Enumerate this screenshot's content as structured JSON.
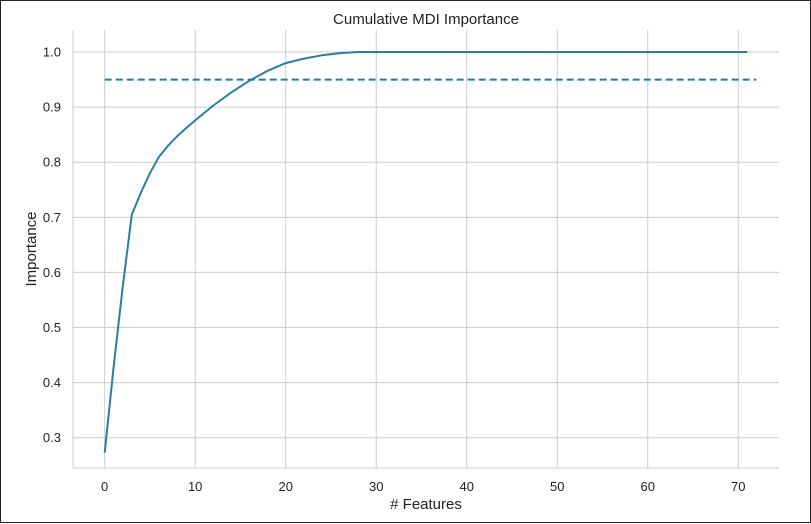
{
  "chart_data": {
    "type": "line",
    "title": "Cumulative MDI Importance",
    "xlabel": "# Features",
    "ylabel": "Importance",
    "xlim": [
      -3.5,
      74.5
    ],
    "ylim": [
      0.245,
      1.04
    ],
    "xticks": [
      0,
      10,
      20,
      30,
      40,
      50,
      60,
      70
    ],
    "yticks": [
      0.3,
      0.4,
      0.5,
      0.6,
      0.7,
      0.8,
      0.9,
      1.0
    ],
    "xtick_labels": [
      "0",
      "10",
      "20",
      "30",
      "40",
      "50",
      "60",
      "70"
    ],
    "ytick_labels": [
      "0.3",
      "0.4",
      "0.5",
      "0.6",
      "0.7",
      "0.8",
      "0.9",
      "1.0"
    ],
    "grid": true,
    "series": [
      {
        "style": "solid",
        "color": "#2a7f9e",
        "x": [
          0,
          1,
          2,
          3,
          4,
          5,
          6,
          7,
          8,
          9,
          10,
          12,
          14,
          16,
          18,
          20,
          22,
          24,
          26,
          28,
          30,
          35,
          40,
          50,
          60,
          71
        ],
        "y": [
          0.273,
          0.43,
          0.575,
          0.705,
          0.745,
          0.78,
          0.81,
          0.83,
          0.847,
          0.862,
          0.876,
          0.903,
          0.927,
          0.948,
          0.966,
          0.98,
          0.988,
          0.994,
          0.998,
          1.0,
          1.0,
          1.0,
          1.0,
          1.0,
          1.0,
          1.0
        ]
      },
      {
        "style": "dashed",
        "color": "#1f7f9a",
        "x": [
          0,
          72
        ],
        "y": [
          0.95,
          0.95
        ]
      }
    ]
  }
}
